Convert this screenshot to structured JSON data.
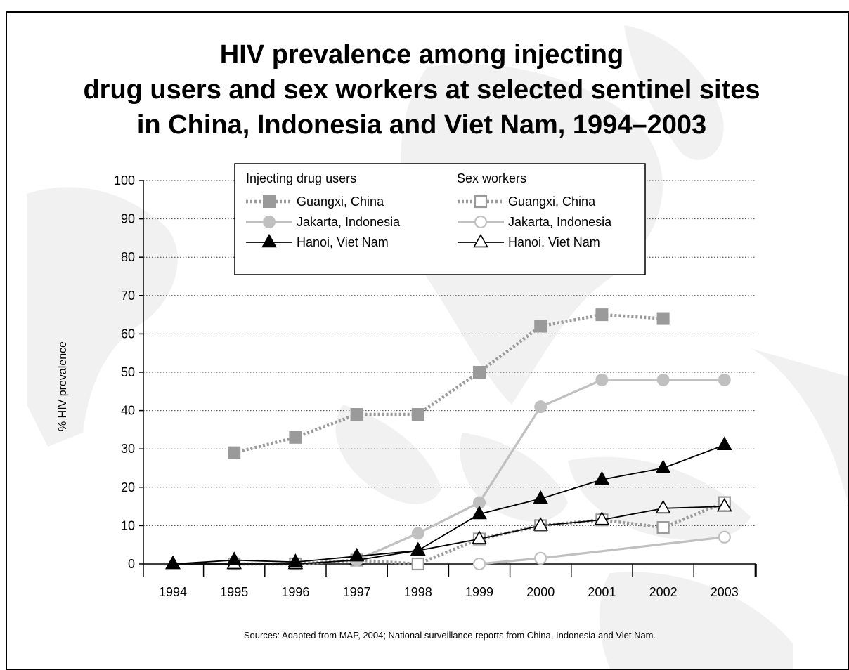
{
  "chart_data": {
    "type": "line",
    "title_lines": [
      "HIV prevalence among injecting",
      "drug users and sex workers at selected sentinel sites",
      "in China, Indonesia and Viet Nam, 1994–2003"
    ],
    "xlabel": "",
    "ylabel": "% HIV prevalence",
    "x": [
      "1994",
      "1995",
      "1996",
      "1997",
      "1998",
      "1999",
      "2000",
      "2001",
      "2002",
      "2003"
    ],
    "yticks": [
      0,
      10,
      20,
      30,
      40,
      50,
      60,
      70,
      80,
      90,
      100
    ],
    "ylim": [
      0,
      100
    ],
    "grid": "horizontal dotted",
    "legend_headers": {
      "idu": "Injecting drug users",
      "sw": "Sex workers"
    },
    "legend_placement": "top-center",
    "series": [
      {
        "name": "Guangxi, China",
        "group": "idu",
        "color": "#9a9a9a",
        "line": "dotted",
        "marker": "square-filled",
        "values": [
          null,
          29,
          33,
          39,
          39,
          50,
          62,
          65,
          64,
          null
        ]
      },
      {
        "name": "Jakarta, Indonesia",
        "group": "idu",
        "color": "#c0c0c0",
        "line": "solid",
        "marker": "circle-filled",
        "values": [
          null,
          null,
          null,
          1,
          8,
          16,
          41,
          48,
          48,
          48
        ]
      },
      {
        "name": "Hanoi, Viet Nam",
        "group": "idu",
        "color": "#000000",
        "line": "solid",
        "marker": "triangle-filled",
        "values": [
          0,
          1,
          0.5,
          2,
          3.5,
          13,
          17,
          22,
          25,
          31
        ]
      },
      {
        "name": "Guangxi, China",
        "group": "sw",
        "color": "#9a9a9a",
        "line": "dotted",
        "marker": "square-open",
        "values": [
          null,
          0,
          0,
          1,
          0,
          6.5,
          10,
          11.5,
          9.5,
          16
        ]
      },
      {
        "name": "Jakarta, Indonesia",
        "group": "sw",
        "color": "#c0c0c0",
        "line": "solid",
        "marker": "circle-open",
        "values": [
          null,
          null,
          null,
          null,
          null,
          0,
          1.5,
          null,
          null,
          7
        ]
      },
      {
        "name": "Hanoi, Viet Nam",
        "group": "sw",
        "color": "#000000",
        "line": "solid",
        "marker": "triangle-open",
        "values": [
          0,
          0,
          0,
          1,
          3.5,
          6.5,
          10,
          11.5,
          14.5,
          15
        ]
      }
    ],
    "source": "Sources: Adapted from MAP, 2004; National surveillance reports from China, Indonesia and Viet Nam."
  }
}
